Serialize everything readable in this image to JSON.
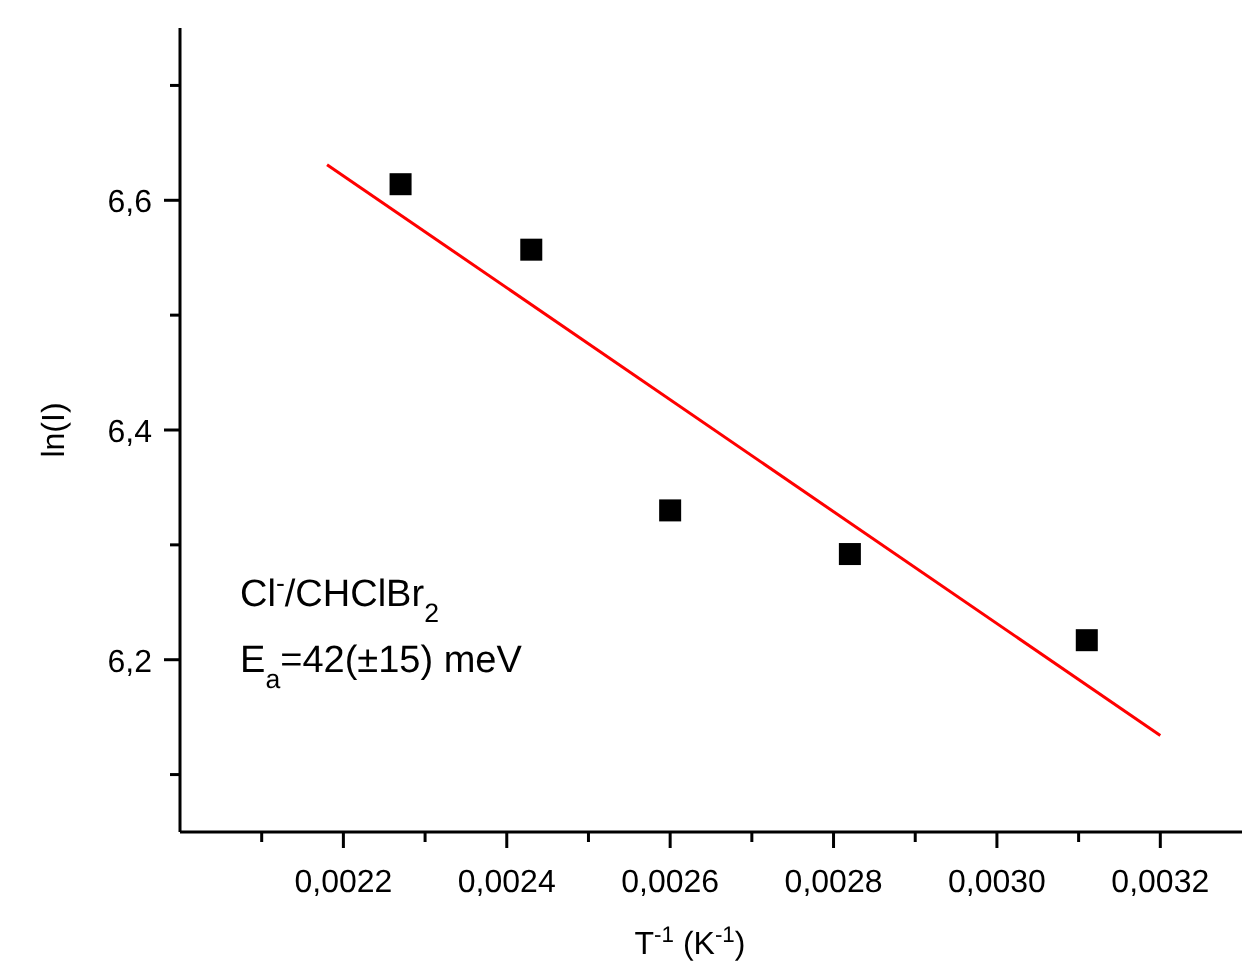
{
  "chart_data": {
    "type": "scatter",
    "xlabel": "T$^{-1}$ (K$^{-1}$)",
    "ylabel": "ln(I)",
    "xlim": [
      0.002,
      0.0033
    ],
    "ylim": [
      6.05,
      6.75
    ],
    "xticks": [
      {
        "value": 0.0021,
        "label": null
      },
      {
        "value": 0.0022,
        "label": "0,0022"
      },
      {
        "value": 0.0023,
        "label": null
      },
      {
        "value": 0.0024,
        "label": "0,0024"
      },
      {
        "value": 0.0025,
        "label": null
      },
      {
        "value": 0.0026,
        "label": "0,0026"
      },
      {
        "value": 0.0027,
        "label": null
      },
      {
        "value": 0.0028,
        "label": "0,0028"
      },
      {
        "value": 0.0029,
        "label": null
      },
      {
        "value": 0.003,
        "label": "0,0030"
      },
      {
        "value": 0.0031,
        "label": null
      },
      {
        "value": 0.0032,
        "label": "0,0032"
      }
    ],
    "yticks": [
      {
        "value": 6.1,
        "label": null
      },
      {
        "value": 6.2,
        "label": "6,2"
      },
      {
        "value": 6.3,
        "label": null
      },
      {
        "value": 6.4,
        "label": "6,4"
      },
      {
        "value": 6.5,
        "label": null
      },
      {
        "value": 6.6,
        "label": "6,6"
      },
      {
        "value": 6.7,
        "label": null
      }
    ],
    "marker": "square",
    "grid": false,
    "series": [
      {
        "color": "#000000",
        "x": [
          0.00227,
          0.00243,
          0.0026,
          0.00282,
          0.00311
        ],
        "values": [
          6.614,
          6.557,
          6.33,
          6.292,
          6.217
        ]
      },
      {
        "type": "line",
        "color": "#ff0000",
        "marker": "none",
        "x": [
          0.00218,
          0.0032
        ],
        "values": [
          6.631,
          6.134
        ]
      }
    ],
    "annotations": [
      {
        "text": "Cl$^{-}$/CHClBr$_{2}$"
      },
      {
        "text": "E$_{a}$=42(±15) meV"
      }
    ]
  }
}
